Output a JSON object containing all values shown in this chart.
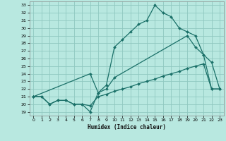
{
  "xlabel": "Humidex (Indice chaleur)",
  "background_color": "#b8e8e0",
  "grid_color": "#90c8c0",
  "line_color": "#1a7068",
  "xlim": [
    -0.5,
    23.5
  ],
  "ylim": [
    18.5,
    33.5
  ],
  "xticks": [
    0,
    1,
    2,
    3,
    4,
    5,
    6,
    7,
    8,
    9,
    10,
    11,
    12,
    13,
    14,
    15,
    16,
    17,
    18,
    19,
    20,
    21,
    22,
    23
  ],
  "yticks": [
    19,
    20,
    21,
    22,
    23,
    24,
    25,
    26,
    27,
    28,
    29,
    30,
    31,
    32,
    33
  ],
  "line1_x": [
    0,
    1,
    2,
    3,
    4,
    5,
    6,
    7,
    8,
    9,
    10,
    11,
    12,
    13,
    14,
    15,
    16,
    17,
    18,
    19,
    20,
    21,
    22,
    23
  ],
  "line1_y": [
    21.0,
    21.0,
    20.0,
    20.5,
    20.5,
    20.0,
    20.0,
    19.8,
    21.0,
    21.3,
    21.7,
    22.0,
    22.3,
    22.7,
    23.0,
    23.3,
    23.7,
    24.0,
    24.3,
    24.7,
    25.0,
    25.3,
    22.0,
    22.0
  ],
  "line2_x": [
    0,
    1,
    2,
    3,
    4,
    5,
    6,
    7,
    8,
    9,
    10,
    11,
    12,
    13,
    14,
    15,
    16,
    17,
    18,
    19,
    20,
    21,
    22,
    23
  ],
  "line2_y": [
    21.0,
    21.0,
    20.0,
    20.5,
    20.5,
    20.0,
    20.0,
    19.0,
    21.5,
    22.5,
    27.5,
    28.5,
    29.5,
    30.5,
    31.0,
    33.0,
    32.0,
    31.5,
    30.0,
    29.5,
    29.0,
    26.5,
    25.5,
    22.0
  ],
  "line3_x": [
    0,
    7,
    8,
    9,
    10,
    19,
    20,
    21,
    22,
    23
  ],
  "line3_y": [
    21.0,
    24.0,
    21.5,
    22.0,
    23.5,
    29.0,
    27.5,
    26.5,
    22.0,
    22.0
  ]
}
